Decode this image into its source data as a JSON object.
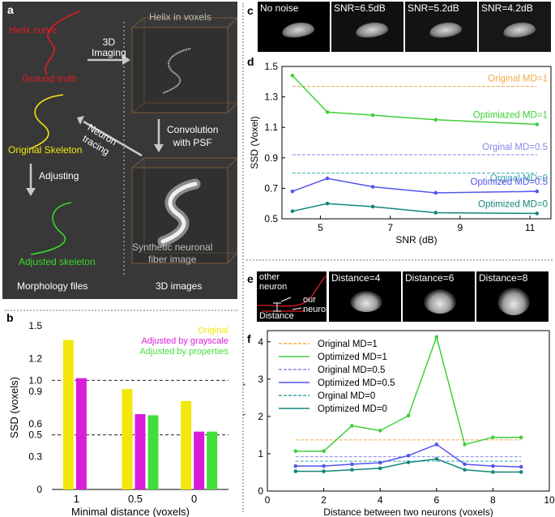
{
  "panel_labels": {
    "a": "a",
    "b": "b",
    "c": "c",
    "d": "d",
    "e": "e",
    "f": "f"
  },
  "panel_a": {
    "helix_curve": "Helix curve",
    "ground_truth": "Ground truth",
    "imaging": "3D\nImaging",
    "helix_in_voxels": "Helix in voxels",
    "convolution": "Convolution\nwith PSF",
    "neuron_tracing": "Neuron\ntracing",
    "original_skeleton": "Original Skeleton",
    "adjusting": "Adjusting",
    "adjusted_skeleton": "Adjusted skeleton",
    "synthetic": "Synthetic neuronal\nfiber image",
    "morphology_files": "Morphology files",
    "images_3d": "3D images",
    "colors": {
      "bg": "#383838",
      "red": "#e31b23",
      "yellow": "#f2e60c",
      "green": "#3ad62c",
      "text": "#ffffff",
      "grey_text": "#bdbdbd"
    }
  },
  "panel_c": {
    "thumbs": [
      "No noise",
      "SNR=6.5dB",
      "SNR=5.2dB",
      "SNR=4.2dB"
    ]
  },
  "panel_e": {
    "schematic": {
      "other_neuron": "other\nneuron",
      "our_neuron": "our\nneuron",
      "distance": "Distance"
    },
    "thumbs": [
      "Distance=4",
      "Distance=6",
      "Distance=8"
    ]
  },
  "chart_data": [
    {
      "panel": "b",
      "type": "bar",
      "categories": [
        "1",
        "0.5",
        "0"
      ],
      "series": [
        {
          "name": "Original",
          "color": "#f2e60c",
          "values": [
            1.37,
            0.92,
            0.81
          ]
        },
        {
          "name": "Adjusted by grayscale",
          "color": "#d91cd9",
          "values": [
            1.02,
            0.69,
            0.53
          ]
        },
        {
          "name": "Adjusted by properties",
          "color": "#44de3c",
          "values": [
            null,
            0.68,
            0.53
          ]
        }
      ],
      "ylabel": "SSD (voxels)",
      "xlabel": "Minimal distance  (voxels)",
      "ylim": [
        0,
        1.5
      ],
      "yticks": [
        "0",
        "0.3",
        "0.5",
        "0.6",
        "0.9",
        "1.0",
        "1.2",
        "1.5"
      ],
      "ytick_values": [
        0,
        0.3,
        0.5,
        0.6,
        0.9,
        1.0,
        1.2,
        1.5
      ],
      "dashed_reference_lines": [
        0.5,
        1.0
      ],
      "legend_position": "top-right"
    },
    {
      "panel": "d",
      "type": "line",
      "x": [
        4.2,
        5.2,
        6.5,
        8.3,
        11.2
      ],
      "xlabel": "SNR (dB)",
      "ylabel": "SSD (Voxel)",
      "xlim": [
        3.9,
        11.6
      ],
      "ylim": [
        0.5,
        1.5
      ],
      "xticks": [
        5,
        7,
        9,
        11
      ],
      "yticks": [
        0.5,
        0.7,
        0.9,
        1.1,
        1.3,
        1.5
      ],
      "reference_lines": [
        {
          "name": "Original MD=1",
          "value": 1.37,
          "color": "#f3a94a"
        },
        {
          "name": "Orginal MD=0.5",
          "value": 0.92,
          "color": "#8a88e8"
        },
        {
          "name": "Orginal MD=0",
          "value": 0.8,
          "color": "#3aa8a8"
        }
      ],
      "series": [
        {
          "name": "Optimiazed MD=1",
          "color": "#3fcf3a",
          "values": [
            1.44,
            1.2,
            1.18,
            1.15,
            1.12
          ]
        },
        {
          "name": "Optimized MD=0.5",
          "color": "#5555ee",
          "values": [
            0.68,
            0.765,
            0.71,
            0.67,
            0.68
          ]
        },
        {
          "name": "Optimized MD=0",
          "color": "#12867a",
          "values": [
            0.55,
            0.6,
            0.58,
            0.54,
            0.535
          ]
        }
      ]
    },
    {
      "panel": "f",
      "type": "line",
      "x": [
        1,
        2,
        3,
        4,
        5,
        6,
        7,
        8,
        9
      ],
      "xlabel": "Distance between two neurons (voxels)",
      "ylabel": "SSD (voxels)",
      "xlim": [
        0,
        10
      ],
      "ylim": [
        0,
        4.3
      ],
      "xticks": [
        0,
        2,
        4,
        6,
        8,
        10
      ],
      "yticks": [
        0,
        1,
        2,
        3,
        4
      ],
      "legend": [
        "Original MD=1",
        "Optimized MD=1",
        "Original MD=0.5",
        "Optimized MD=0.5",
        "Orginal MD=0",
        "Optimized MD=0"
      ],
      "reference_lines": [
        {
          "name": "Original MD=1",
          "value": 1.37,
          "color": "#f3a94a"
        },
        {
          "name": "Original MD=0.5",
          "value": 0.92,
          "color": "#8a88e8"
        },
        {
          "name": "Orginal MD=0",
          "value": 0.8,
          "color": "#3aa8a8"
        }
      ],
      "series": [
        {
          "name": "Optimized MD=1",
          "color": "#3fcf3a",
          "values": [
            1.07,
            1.07,
            1.75,
            1.62,
            2.02,
            4.13,
            1.25,
            1.44,
            1.44
          ]
        },
        {
          "name": "Optimized MD=0.5",
          "color": "#5555ee",
          "values": [
            0.67,
            0.67,
            0.72,
            0.76,
            0.95,
            1.25,
            0.72,
            0.67,
            0.65
          ]
        },
        {
          "name": "Optimized MD=0",
          "color": "#12867a",
          "values": [
            0.53,
            0.53,
            0.57,
            0.61,
            0.77,
            0.86,
            0.57,
            0.51,
            0.51
          ]
        }
      ]
    }
  ]
}
